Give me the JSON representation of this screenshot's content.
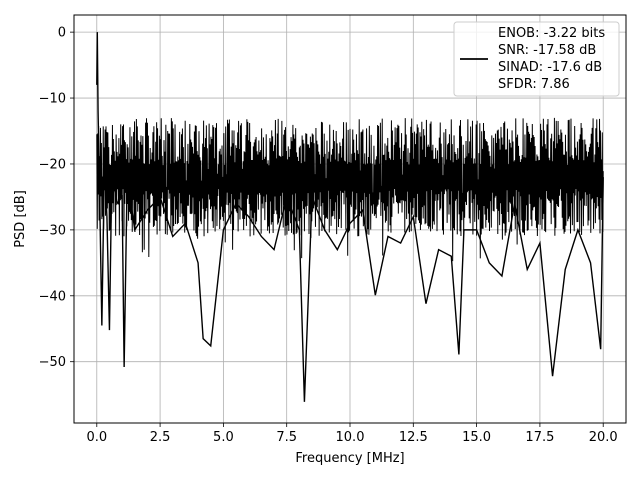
{
  "chart_data": {
    "type": "line",
    "title": "",
    "xlabel": "Frequency [MHz]",
    "ylabel": "PSD [dB]",
    "xlim": [
      -0.9,
      20.9
    ],
    "ylim": [
      -59.3,
      2.6
    ],
    "x_ticks": [
      0.0,
      2.5,
      5.0,
      7.5,
      10.0,
      12.5,
      15.0,
      17.5,
      20.0
    ],
    "x_tick_labels": [
      "0.0",
      "2.5",
      "5.0",
      "7.5",
      "10.0",
      "12.5",
      "15.0",
      "17.5",
      "20.0"
    ],
    "y_ticks": [
      0,
      -10,
      -20,
      -30,
      -40,
      -50
    ],
    "y_tick_labels": [
      "0",
      "−10",
      "−20",
      "−30",
      "−40",
      "−50"
    ],
    "grid": true,
    "legend_position": "top-right",
    "series": [
      {
        "name": "ENOB: -3.22 bits\nSNR: -17.58 dB\nSINAD: -17.6 dB\nSFDR: 7.86",
        "color": "#000000",
        "x": [
          0.0,
          0.02,
          0.05,
          0.1,
          0.2,
          0.3,
          0.4,
          0.5,
          0.6,
          0.8,
          1.0,
          1.08,
          1.2,
          1.5,
          2.0,
          2.5,
          3.0,
          3.5,
          4.0,
          4.2,
          4.5,
          5.0,
          5.5,
          6.0,
          6.5,
          7.0,
          7.5,
          8.0,
          8.2,
          8.5,
          9.0,
          9.5,
          10.0,
          10.5,
          11.0,
          11.5,
          12.0,
          12.5,
          13.0,
          13.5,
          14.0,
          14.3,
          14.5,
          15.0,
          15.5,
          16.0,
          16.5,
          17.0,
          17.5,
          18.0,
          18.5,
          19.0,
          19.5,
          19.9,
          20.0
        ],
        "values": [
          -8,
          0,
          -12,
          -22,
          -44.5,
          -20,
          -28,
          -45.2,
          -20,
          -26,
          -25,
          -50.8,
          -22,
          -30,
          -27,
          -25,
          -31,
          -29,
          -35,
          -46.5,
          -47.6,
          -30,
          -26,
          -28,
          -31,
          -33,
          -25,
          -30,
          -56.1,
          -25,
          -30,
          -33,
          -29,
          -27,
          -39.9,
          -31,
          -32,
          -28,
          -41.2,
          -33,
          -34,
          -48.9,
          -30,
          -30,
          -35,
          -37,
          -26,
          -36,
          -32,
          -52.2,
          -36,
          -30,
          -35,
          -48.1,
          -22
        ]
      }
    ],
    "noise_band": {
      "x_range": [
        0.0,
        20.0
      ],
      "upper_envelope_db": -13,
      "lower_envelope_db": -31,
      "typical_center_db": -22
    },
    "peak": {
      "x": 0.0,
      "y": 0.0
    }
  }
}
